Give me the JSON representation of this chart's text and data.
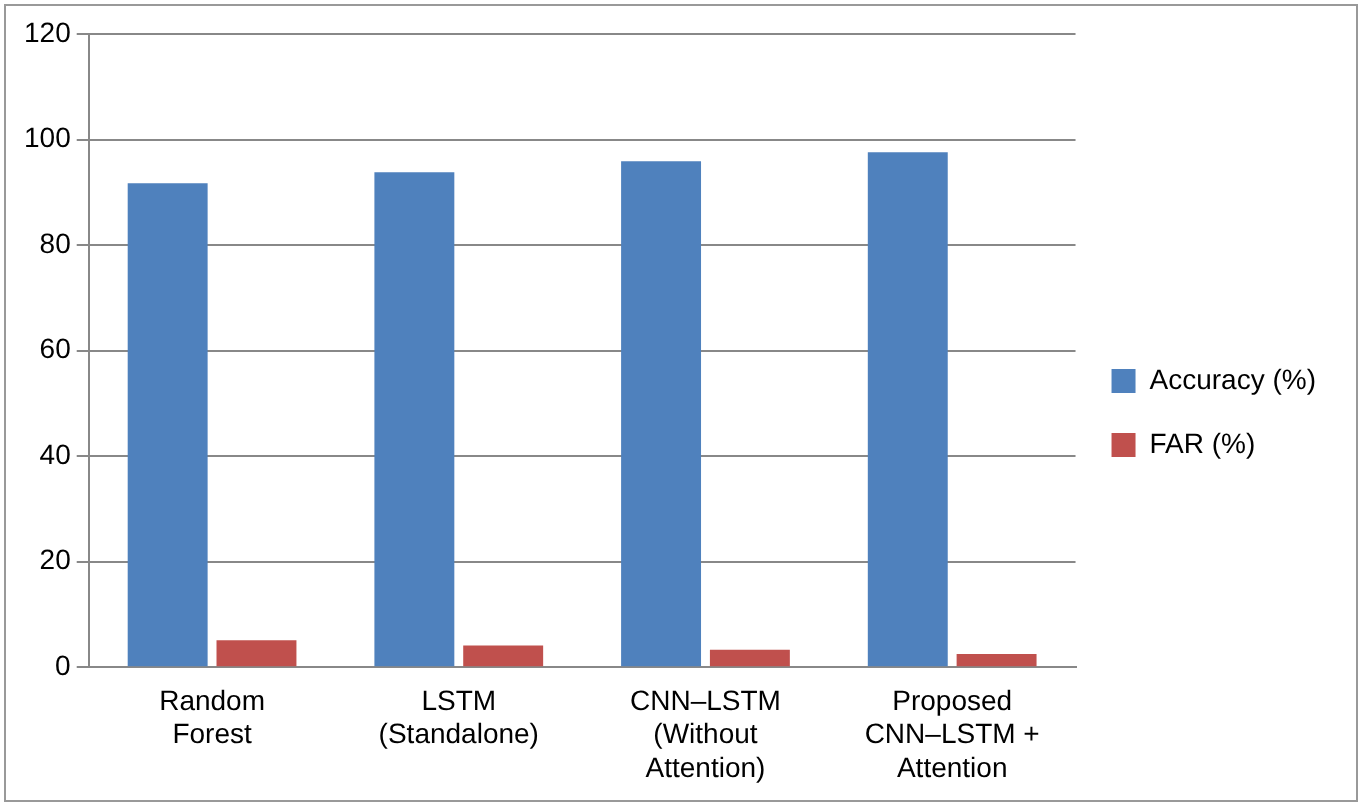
{
  "chart_data": {
    "type": "bar",
    "categories": [
      "Random Forest",
      "LSTM (Standalone)",
      "CNN–LSTM (Without Attention)",
      "Proposed CNN–LSTM + Attention"
    ],
    "series": [
      {
        "name": "Accuracy (%)",
        "color": "#4f81bd",
        "values": [
          91.7,
          93.8,
          95.9,
          97.6
        ]
      },
      {
        "name": "FAR (%)",
        "color": "#c0504d",
        "values": [
          5.1,
          4.1,
          3.3,
          2.5
        ]
      }
    ],
    "ylim": [
      0,
      120
    ],
    "yticks": [
      0,
      20,
      40,
      60,
      80,
      100,
      120
    ],
    "grid": "y",
    "legend": "right"
  }
}
